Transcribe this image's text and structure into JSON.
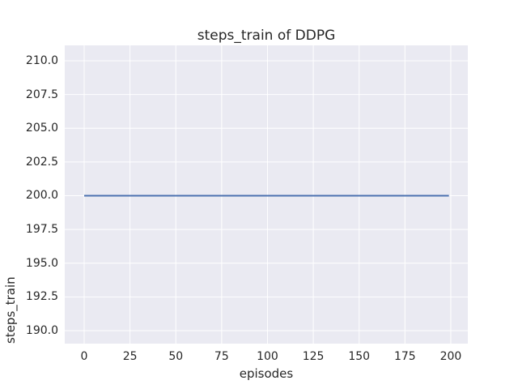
{
  "chart_data": {
    "type": "line",
    "title": "steps_train of DDPG",
    "xlabel": "episodes",
    "ylabel": "steps_train",
    "x_ticks": [
      0,
      25,
      50,
      75,
      100,
      125,
      150,
      175,
      200
    ],
    "x_tick_labels": [
      "0",
      "25",
      "50",
      "75",
      "100",
      "125",
      "150",
      "175",
      "200"
    ],
    "y_ticks": [
      190.0,
      192.5,
      195.0,
      197.5,
      200.0,
      202.5,
      205.0,
      207.5,
      210.0
    ],
    "y_tick_labels": [
      "190.0",
      "192.5",
      "195.0",
      "197.5",
      "200.0",
      "202.5",
      "205.0",
      "207.5",
      "210.0"
    ],
    "xlim": [
      -10.6,
      209.3
    ],
    "ylim": [
      189.04,
      211.14
    ],
    "grid": true,
    "legend": "none",
    "series": [
      {
        "name": "steps_train",
        "color": "#4c72b0",
        "description": "constant value 200 for every episode from 0 to 199",
        "x": [
          0,
          199
        ],
        "y": [
          200,
          200
        ]
      }
    ],
    "colors": {
      "figure_background": "#ffffff",
      "plot_background": "#eaeaf2",
      "grid": "#ffffff",
      "text": "#262626",
      "line": "#4c72b0"
    }
  }
}
